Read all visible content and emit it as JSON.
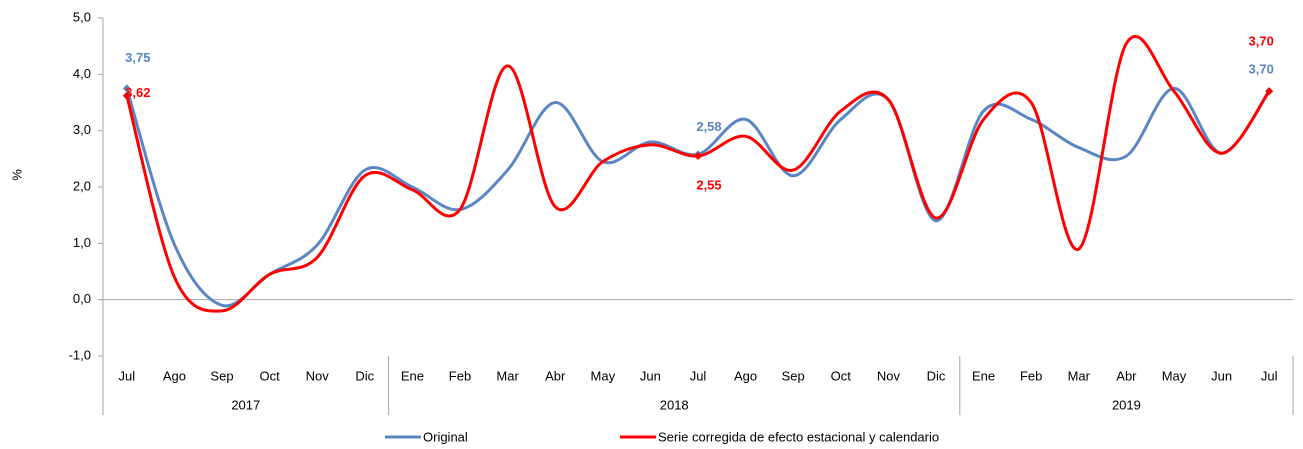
{
  "chart_data": {
    "type": "line",
    "y_label": "%",
    "groups": [
      {
        "label": "2017",
        "categories": [
          "Jul",
          "Ago",
          "Sep",
          "Oct",
          "Nov",
          "Dic"
        ]
      },
      {
        "label": "2018",
        "categories": [
          "Ene",
          "Feb",
          "Mar",
          "Abr",
          "May",
          "Jun",
          "Jul",
          "Ago",
          "Sep",
          "Oct",
          "Nov",
          "Dic"
        ]
      },
      {
        "label": "2019",
        "categories": [
          "Ene",
          "Feb",
          "Mar",
          "Abr",
          "May",
          "Jun",
          "Jul"
        ]
      }
    ],
    "series": [
      {
        "name": "Original",
        "color": "#5b86c4",
        "values": [
          3.75,
          0.98,
          -0.1,
          0.45,
          0.97,
          2.3,
          2.0,
          1.6,
          2.3,
          3.5,
          2.45,
          2.8,
          2.58,
          3.2,
          2.2,
          3.2,
          3.55,
          1.4,
          3.35,
          3.2,
          2.7,
          2.55,
          3.75,
          2.6,
          3.7
        ],
        "value_labels": [
          "3,75",
          null,
          null,
          null,
          null,
          null,
          null,
          null,
          null,
          null,
          null,
          null,
          "2,58",
          null,
          null,
          null,
          null,
          null,
          null,
          null,
          null,
          null,
          null,
          null,
          "3,70"
        ]
      },
      {
        "name": "Serie corregida de efecto estacional y calendario",
        "color": "#ff0000",
        "values": [
          3.62,
          0.4,
          -0.2,
          0.45,
          0.75,
          2.2,
          1.95,
          1.6,
          4.15,
          1.65,
          2.45,
          2.75,
          2.55,
          2.9,
          2.3,
          3.35,
          3.55,
          1.45,
          3.2,
          3.5,
          0.9,
          4.55,
          3.7,
          2.6,
          3.7
        ],
        "value_labels": [
          "3,62",
          null,
          null,
          null,
          null,
          null,
          null,
          null,
          null,
          null,
          null,
          null,
          "2,55",
          null,
          null,
          null,
          null,
          null,
          null,
          null,
          null,
          null,
          null,
          null,
          "3,70"
        ]
      }
    ],
    "ylim": [
      -1,
      5
    ],
    "yticks": [
      {
        "value": -1,
        "label": "-1,0"
      },
      {
        "value": 0,
        "label": "0,0"
      },
      {
        "value": 1,
        "label": "1,0"
      },
      {
        "value": 2,
        "label": "2,0"
      },
      {
        "value": 3,
        "label": "3,0"
      },
      {
        "value": 4,
        "label": "4,0"
      },
      {
        "value": 5,
        "label": "5,0"
      }
    ],
    "legend": "bottom",
    "smooth": true
  }
}
